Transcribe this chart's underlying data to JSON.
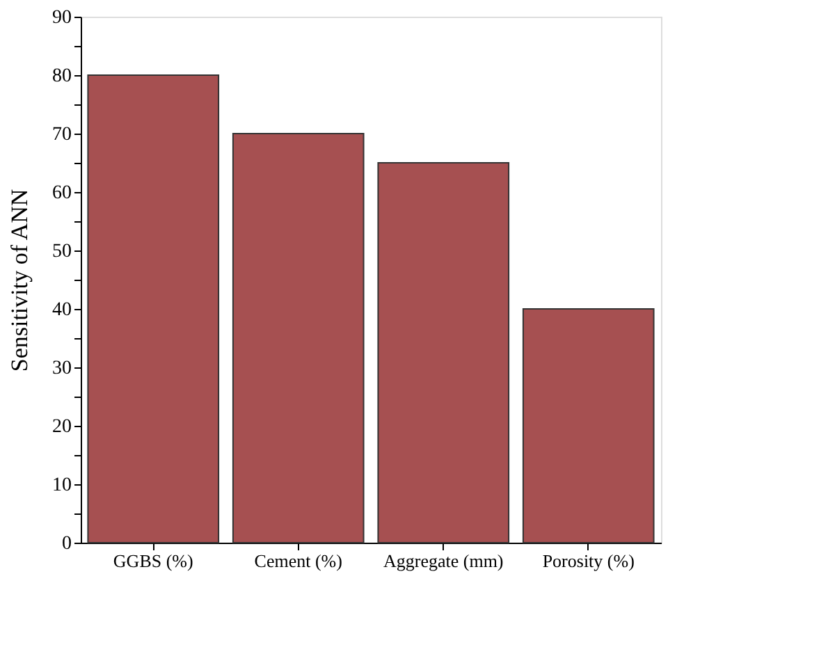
{
  "chart_data": {
    "type": "bar",
    "ylabel": "Sensitivity of ANN",
    "categories": [
      "GGBS (%)",
      "Cement (%)",
      "Aggregate (mm)",
      "Porosity (%)"
    ],
    "values": [
      80,
      70,
      65,
      40
    ],
    "color": "#a65051",
    "ylim": [
      0,
      90
    ],
    "yticks": [
      0,
      {
        "value": 5,
        "label": null
      },
      10,
      {
        "value": 15,
        "label": null
      },
      20,
      {
        "value": 25,
        "label": null
      },
      30,
      {
        "value": 35,
        "label": null
      },
      40,
      {
        "value": 45,
        "label": null
      },
      50,
      {
        "value": 55,
        "label": null
      },
      60,
      {
        "value": 65,
        "label": null
      },
      70,
      {
        "value": 75,
        "label": null
      },
      80,
      {
        "value": 85,
        "label": null
      },
      90
    ],
    "grid": false
  }
}
